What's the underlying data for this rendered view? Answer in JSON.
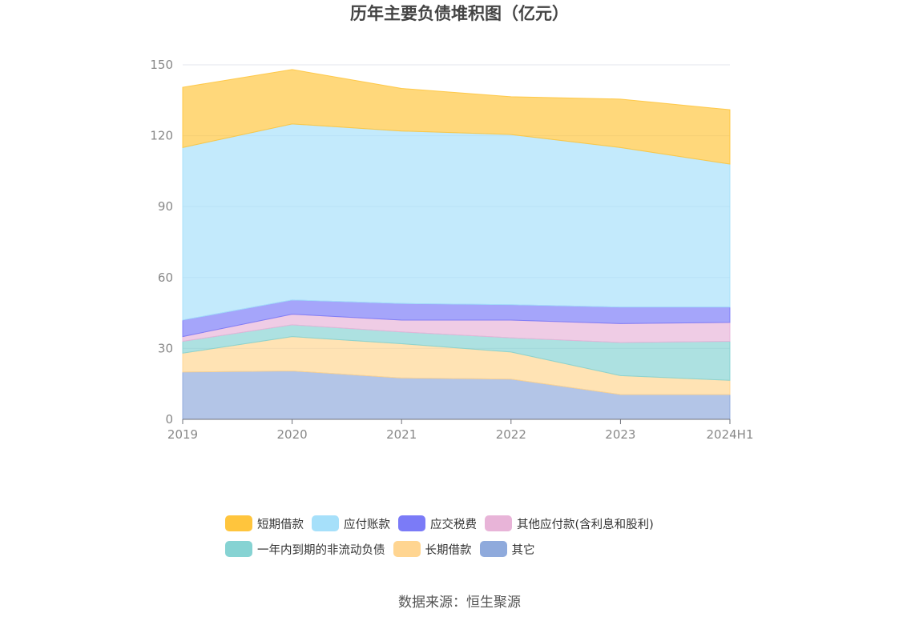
{
  "chart_data": {
    "type": "area",
    "stacked": true,
    "title": "历年主要负债堆积图（亿元）",
    "xlabel": "",
    "ylabel": "",
    "categories": [
      "2019",
      "2020",
      "2021",
      "2022",
      "2023",
      "2024H1"
    ],
    "ylim": [
      0,
      150
    ],
    "yticks": [
      "0",
      "30",
      "60",
      "90",
      "120",
      "150"
    ],
    "grid": true,
    "legend_position": "bottom",
    "series": [
      {
        "name": "其它",
        "color": "#8FAADC",
        "values": [
          20,
          20.5,
          17.5,
          17,
          10.5,
          10.5
        ]
      },
      {
        "name": "长期借款",
        "color": "#FFD591",
        "values": [
          8,
          14.5,
          14.5,
          11.5,
          8,
          6
        ]
      },
      {
        "name": "一年内到期的非流动负债",
        "color": "#86D3D3",
        "values": [
          5,
          5,
          5,
          6,
          14,
          16.5
        ]
      },
      {
        "name": "其他应付款(含利息和股利)",
        "color": "#E8B4D8",
        "values": [
          2,
          4.5,
          5,
          7.5,
          8,
          8
        ]
      },
      {
        "name": "应交税费",
        "color": "#7B7BF7",
        "values": [
          7,
          6,
          7,
          6.5,
          7,
          6.5
        ]
      },
      {
        "name": "应付账款",
        "color": "#A6E0FA",
        "values": [
          73,
          74.5,
          73,
          72,
          67.5,
          60.5
        ]
      },
      {
        "name": "短期借款",
        "color": "#FFC53D",
        "values": [
          25.5,
          23,
          18,
          16,
          20.5,
          23
        ]
      }
    ],
    "legend_order": [
      "短期借款",
      "应付账款",
      "应交税费",
      "其他应付款(含利息和股利)",
      "一年内到期的非流动负债",
      "长期借款",
      "其它"
    ]
  },
  "legend": {
    "row1": [
      {
        "label": "短期借款",
        "color": "#FFC53D"
      },
      {
        "label": "应付账款",
        "color": "#A6E0FA"
      },
      {
        "label": "应交税费",
        "color": "#7B7BF7"
      },
      {
        "label": "其他应付款(含利息和股利)",
        "color": "#E8B4D8"
      }
    ],
    "row2": [
      {
        "label": "一年内到期的非流动负债",
        "color": "#86D3D3"
      },
      {
        "label": "长期借款",
        "color": "#FFD591"
      },
      {
        "label": "其它",
        "color": "#8FAADC"
      }
    ]
  },
  "source": "数据来源：恒生聚源"
}
